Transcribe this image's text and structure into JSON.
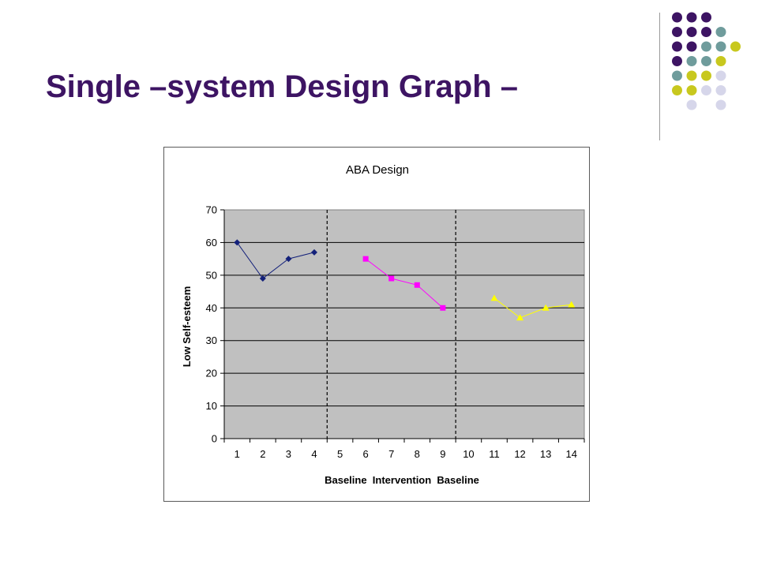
{
  "slide": {
    "title": "Single –system Design Graph –",
    "title_color": "#3d1463",
    "decoration_colors": {
      "purple": "#3d1463",
      "teal": "#6f9c9c",
      "olive": "#c8c81e",
      "lavender": "#d6d6ea"
    },
    "decoration_pattern": [
      [
        "",
        "",
        "",
        "purple",
        "purple",
        "purple"
      ],
      [
        "",
        "",
        "",
        "purple",
        "purple",
        "purple",
        "teal"
      ],
      [
        "",
        "",
        "",
        "purple",
        "purple",
        "teal",
        "teal",
        "olive"
      ],
      [
        "",
        "",
        "",
        "purple",
        "teal",
        "teal",
        "olive"
      ],
      [
        "",
        "",
        "",
        "teal",
        "olive",
        "olive",
        "lavender"
      ],
      [
        "",
        "",
        "",
        "olive",
        "olive",
        "lavender",
        "lavender"
      ],
      [
        "",
        "",
        "",
        "",
        "lavender",
        "",
        "lavender"
      ]
    ]
  },
  "chart_data": {
    "type": "line",
    "title": "ABA Design",
    "xlabel": "Baseline  Intervention  Baseline",
    "ylabel": "Low Self-esteem",
    "categories": [
      "1",
      "2",
      "3",
      "4",
      "5",
      "6",
      "7",
      "8",
      "9",
      "10",
      "11",
      "12",
      "13",
      "14"
    ],
    "yticks": [
      "0",
      "10",
      "20",
      "30",
      "40",
      "50",
      "60",
      "70"
    ],
    "ylim": [
      0,
      70
    ],
    "grid": "horizontal",
    "plot_background": "#c0c0c0",
    "phase_dividers": [
      4.5,
      9.5
    ],
    "series": [
      {
        "x": [
          1,
          2,
          3,
          4
        ],
        "values": [
          60,
          49,
          55,
          57
        ],
        "color": "#14217a",
        "marker": "diamond"
      },
      {
        "x": [
          6,
          7,
          8,
          9
        ],
        "values": [
          55,
          49,
          47,
          40
        ],
        "color": "#ff00ff",
        "marker": "square"
      },
      {
        "x": [
          11,
          12,
          13,
          14
        ],
        "values": [
          43,
          37,
          40,
          41
        ],
        "color": "#ffff00",
        "marker": "triangle"
      }
    ]
  }
}
